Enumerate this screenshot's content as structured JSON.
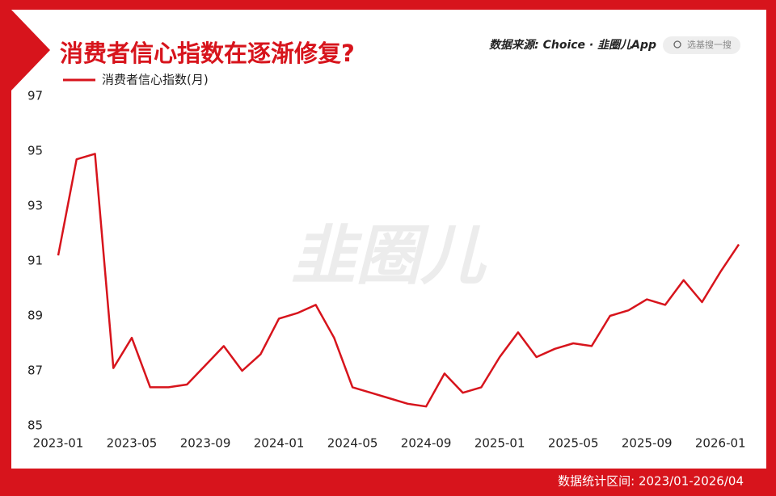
{
  "chart_data": {
    "type": "line",
    "title": "消费者信心指数在逐渐修复?",
    "source": "数据来源: Choice · 韭圈儿App",
    "search": "选基搜一搜",
    "watermark": "韭圈儿",
    "footer": "数据统计区间: 2023/01-2026/04",
    "categories": [
      "2023-01",
      null,
      null,
      null,
      "2023-05",
      null,
      null,
      null,
      "2023-09",
      null,
      null,
      null,
      "2024-01",
      null,
      null,
      null,
      "2024-05",
      null,
      null,
      null,
      "2024-09",
      null,
      null,
      null,
      "2025-01",
      null,
      null,
      null,
      "2025-05",
      null,
      null,
      null,
      "2025-09",
      null,
      null,
      null,
      "2026-01",
      null
    ],
    "series": [
      {
        "name": "消费者信心指数(月)",
        "color": "#d7141c",
        "values": [
          91.2,
          94.7,
          94.9,
          87.1,
          88.2,
          86.4,
          86.4,
          86.5,
          87.2,
          87.9,
          87.0,
          87.6,
          88.9,
          89.1,
          89.4,
          88.2,
          86.4,
          86.2,
          86.0,
          85.8,
          85.7,
          86.9,
          86.2,
          86.4,
          87.5,
          88.4,
          87.5,
          87.8,
          88.0,
          87.9,
          89.0,
          89.2,
          89.6,
          89.4,
          90.3,
          89.5,
          90.6,
          91.6
        ]
      }
    ],
    "ylim": [
      85,
      97
    ],
    "yticks": [
      85,
      87,
      89,
      91,
      93,
      95,
      97
    ],
    "grid": false
  }
}
